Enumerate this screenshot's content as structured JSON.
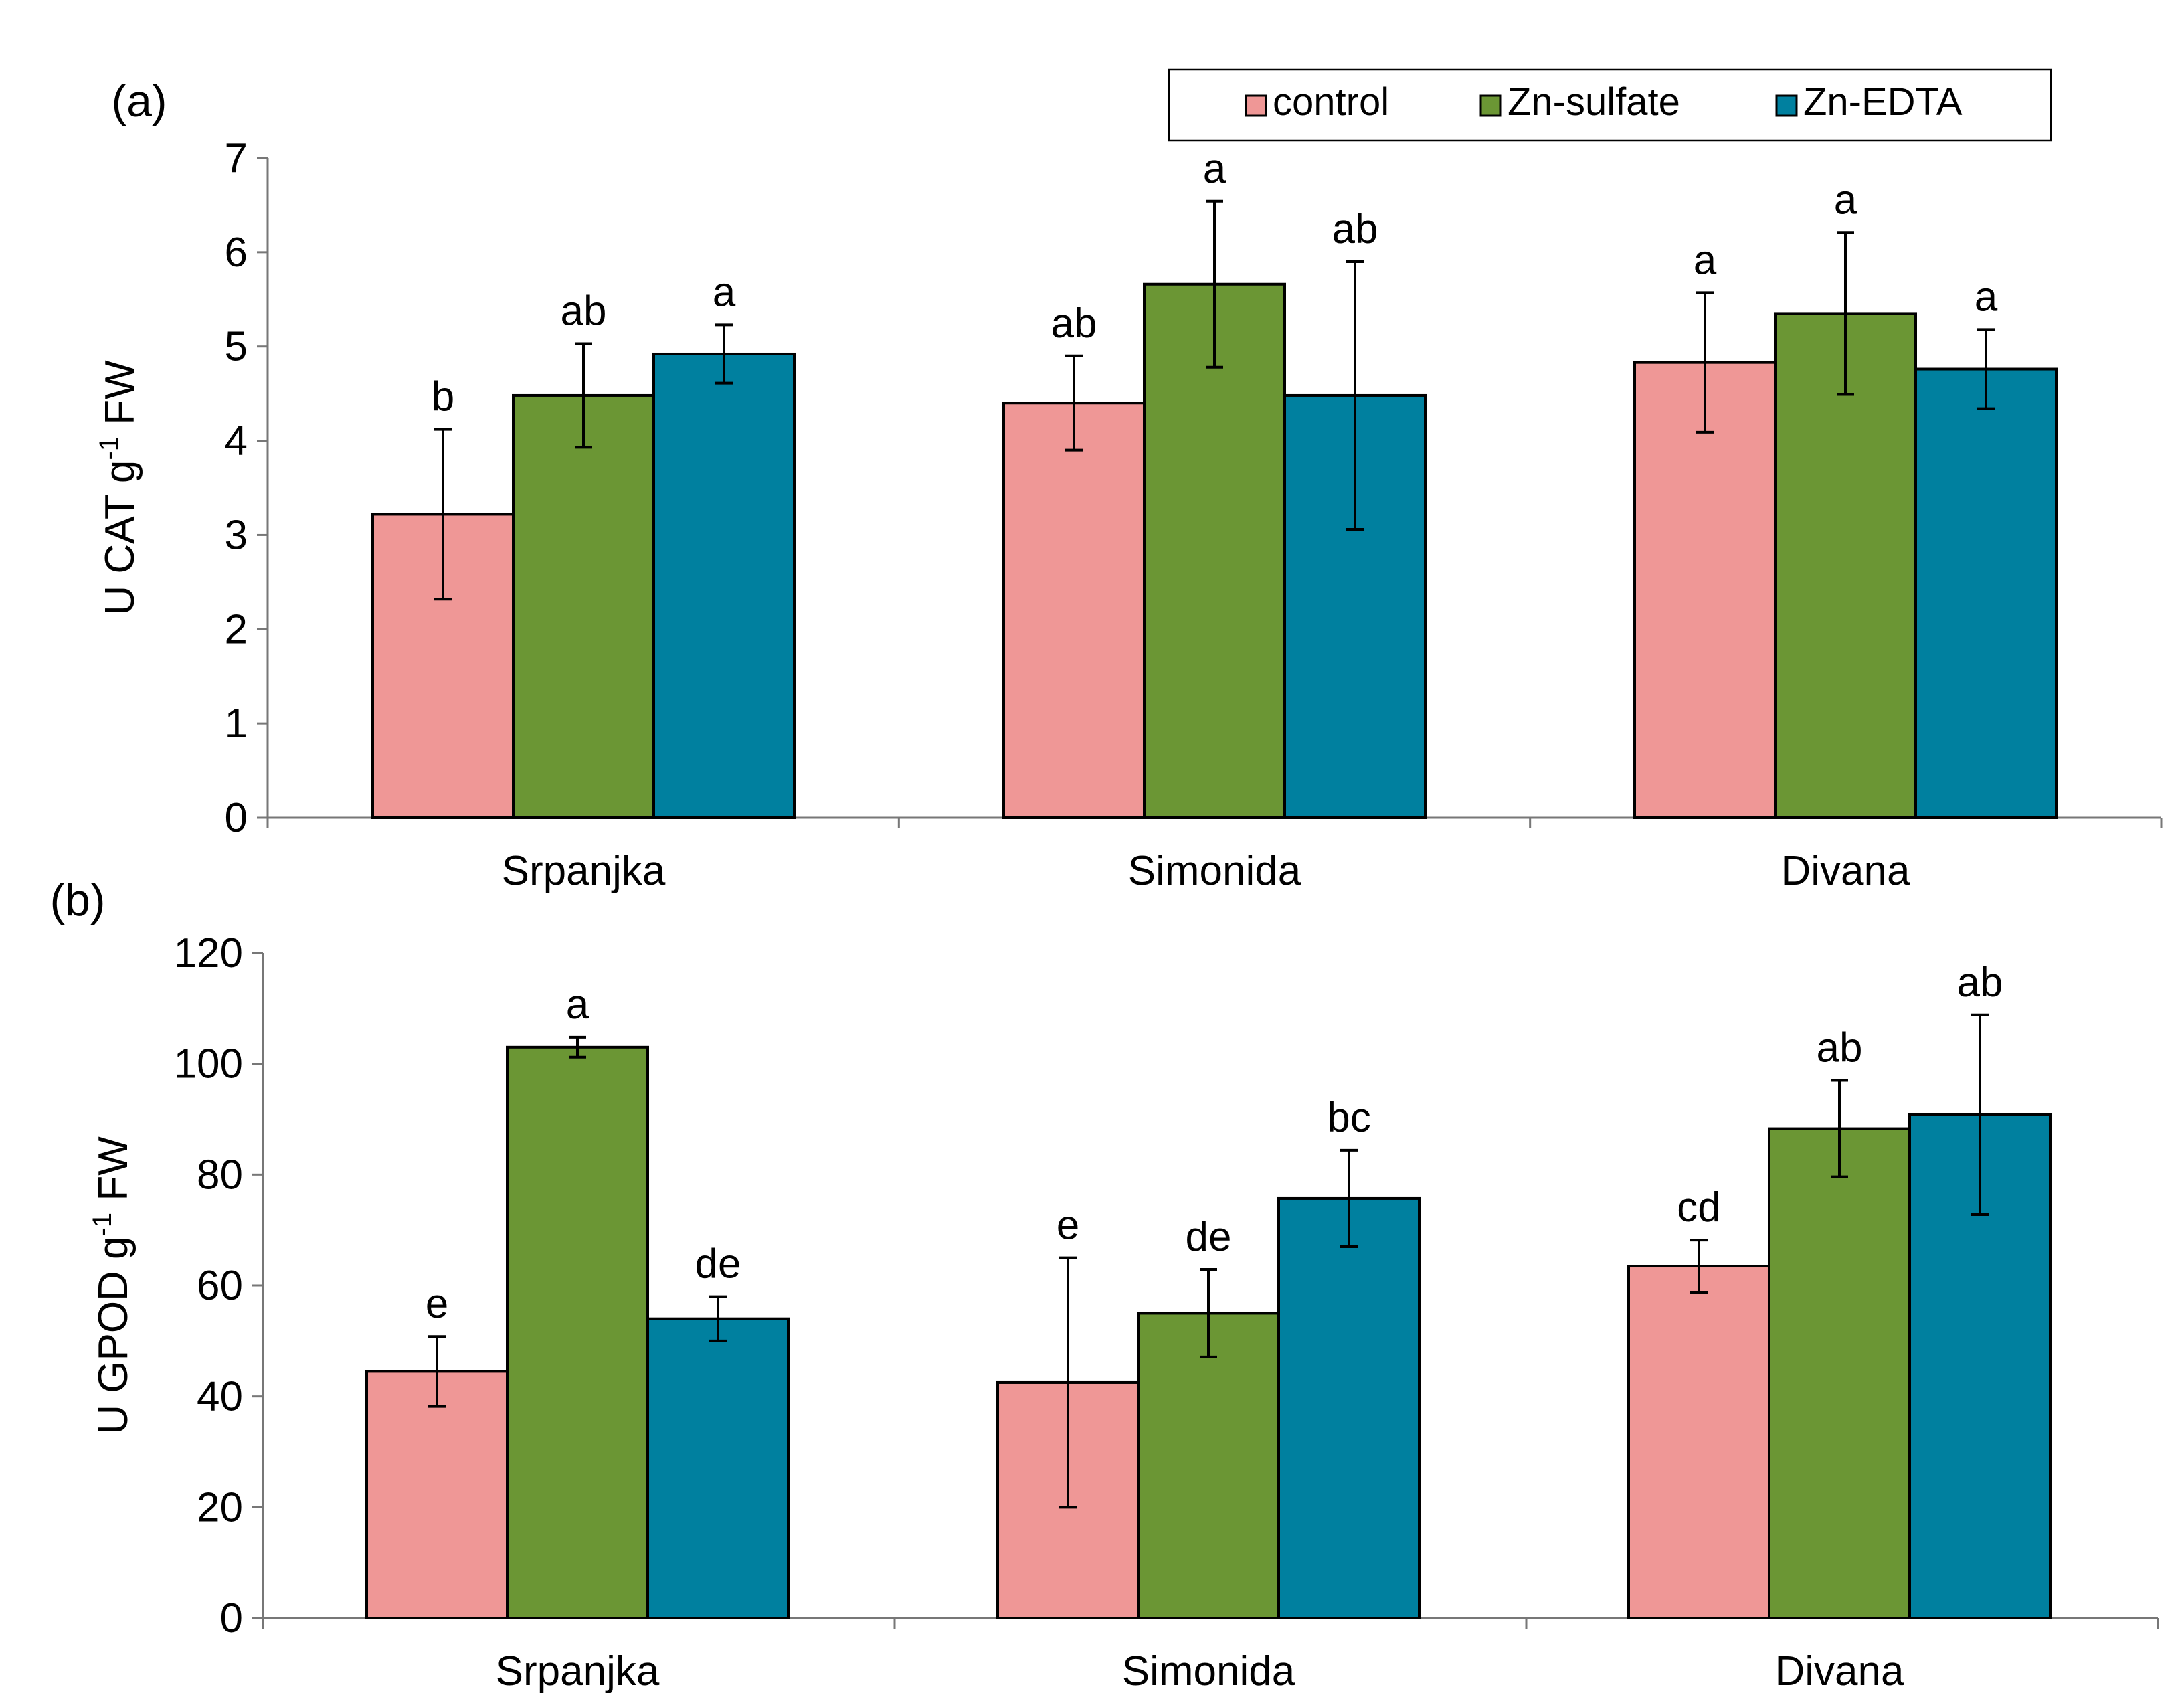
{
  "legend": {
    "entries": [
      {
        "label": "control",
        "color": "#ef9796"
      },
      {
        "label": "Zn-sulfate",
        "color": "#6b9634"
      },
      {
        "label": "Zn-EDTA",
        "color": "#00809f"
      }
    ]
  },
  "chart_data": [
    {
      "type": "bar",
      "panel_label": "(a)",
      "title": "",
      "xlabel": "",
      "ylabel_main": "U CAT g",
      "ylabel_sup": "-1",
      "ylabel_tail": " FW",
      "ylim": [
        0,
        7
      ],
      "yticks": [
        0,
        1,
        2,
        3,
        4,
        5,
        6,
        7
      ],
      "categories": [
        "Srpanjka",
        "Simonida",
        "Divana"
      ],
      "series": [
        {
          "name": "control",
          "values": [
            3.22,
            4.4,
            4.83
          ],
          "errors": [
            0.9,
            0.5,
            0.74
          ],
          "letters": [
            "b",
            "ab",
            "a"
          ]
        },
        {
          "name": "Zn-sulfate",
          "values": [
            4.48,
            5.66,
            5.35
          ],
          "errors": [
            0.55,
            0.88,
            0.86
          ],
          "letters": [
            "ab",
            "a",
            "a"
          ]
        },
        {
          "name": "Zn-EDTA",
          "values": [
            4.92,
            4.48,
            4.76
          ],
          "errors": [
            0.31,
            1.42,
            0.42
          ],
          "letters": [
            "a",
            "ab",
            "a"
          ]
        }
      ]
    },
    {
      "type": "bar",
      "panel_label": "(b)",
      "title": "",
      "xlabel": "",
      "ylabel_main": "U GPOD g",
      "ylabel_sup": "-1",
      "ylabel_tail": " FW",
      "ylim": [
        0,
        120
      ],
      "yticks": [
        0,
        20,
        40,
        60,
        80,
        100,
        120
      ],
      "categories": [
        "Srpanjka",
        "Simonida",
        "Divana"
      ],
      "series": [
        {
          "name": "control",
          "values": [
            44.5,
            42.5,
            63.5
          ],
          "errors": [
            6.3,
            22.5,
            4.7
          ],
          "letters": [
            "e",
            "e",
            "cd"
          ]
        },
        {
          "name": "Zn-sulfate",
          "values": [
            103.0,
            55.0,
            88.3
          ],
          "errors": [
            1.8,
            7.9,
            8.7
          ],
          "letters": [
            "a",
            "de",
            "ab"
          ]
        },
        {
          "name": "Zn-EDTA",
          "values": [
            54.0,
            75.7,
            90.8
          ],
          "errors": [
            4.0,
            8.7,
            18.0
          ],
          "letters": [
            "de",
            "bc",
            "ab"
          ]
        }
      ]
    }
  ]
}
